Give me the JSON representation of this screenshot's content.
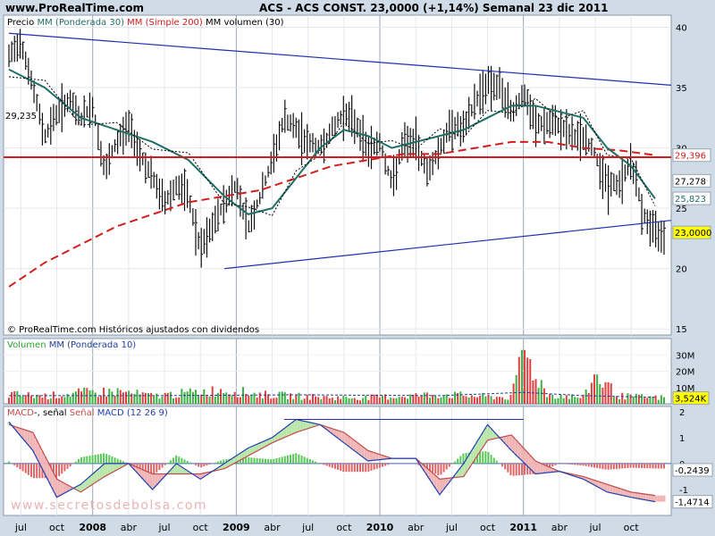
{
  "header": {
    "site": "www.ProRealTime.com",
    "title": "ACS - ACS CONST.    23,0000 (+1,14%)    Semanal  23 dic 2011"
  },
  "price_panel": {
    "legend": [
      {
        "text": "Precio",
        "color": "#000000"
      },
      {
        "text": "MM (Ponderada 30)",
        "color": "#1f6f66"
      },
      {
        "text": "MM (Simple 200)",
        "color": "#d21d1d"
      },
      {
        "text": "MM volumen (30)",
        "color": "#000000"
      }
    ],
    "hline_label": "29,235",
    "tags": [
      {
        "text": "29,396",
        "color": "#d21d1d",
        "bg": "#ffffff",
        "y": 29.4
      },
      {
        "text": "27,278",
        "color": "#000000",
        "bg": "#ffffff",
        "y": 27.28
      },
      {
        "text": "25,823",
        "color": "#1f6f66",
        "bg": "#ffffff",
        "y": 25.82
      },
      {
        "text": "23,0000",
        "color": "#000000",
        "bg": "#ffff00",
        "y": 23.0
      }
    ],
    "footer": "© ProRealTime.com  Históricos ajustados con dividendos"
  },
  "volume_panel": {
    "legend": [
      {
        "text": "Volumen",
        "color": "#2aa52a"
      },
      {
        "text": "MM (Ponderada 10)",
        "color": "#1f3f9a"
      }
    ],
    "tag": "3,524K"
  },
  "macd_panel": {
    "legend": [
      {
        "text": "MACD",
        "color": "#c44b4b"
      },
      {
        "text": "-, señal",
        "color": "#000000"
      },
      {
        "text": "Señal",
        "color": "#c44b4b"
      },
      {
        "text": "MACD (12 26 9)",
        "color": "#1f3fb0"
      }
    ],
    "tags": [
      {
        "text": "-0,2439",
        "y": -0.2439
      },
      {
        "text": "-1,4714",
        "y": -1.4714
      }
    ]
  },
  "watermark": "www.secretosdebolsa.com",
  "x_axis_labels": [
    {
      "text": "jul",
      "bold": false
    },
    {
      "text": "oct",
      "bold": false
    },
    {
      "text": "2008",
      "bold": true
    },
    {
      "text": "abr",
      "bold": false
    },
    {
      "text": "jul",
      "bold": false
    },
    {
      "text": "oct",
      "bold": false
    },
    {
      "text": "2009",
      "bold": true
    },
    {
      "text": "abr",
      "bold": false
    },
    {
      "text": "jul",
      "bold": false
    },
    {
      "text": "oct",
      "bold": false
    },
    {
      "text": "2010",
      "bold": true
    },
    {
      "text": "abr",
      "bold": false
    },
    {
      "text": "jul",
      "bold": false
    },
    {
      "text": "oct",
      "bold": false
    },
    {
      "text": "2011",
      "bold": true
    },
    {
      "text": "abr",
      "bold": false
    },
    {
      "text": "jul",
      "bold": false
    },
    {
      "text": "oct",
      "bold": false
    }
  ],
  "chart_data": [
    {
      "type": "line",
      "panel": "price",
      "title": "ACS - ACS CONST. Semanal",
      "x_range": [
        "2007-06-01",
        "2011-12-23"
      ],
      "ylim": [
        14.5,
        41
      ],
      "y_ticks": [
        "15",
        "20",
        "25",
        "30",
        "35",
        "40"
      ],
      "grid": true,
      "series": [
        {
          "name": "Precio",
          "style": "weekly range bars",
          "x": [
            "2007-06",
            "2007-07",
            "2007-08",
            "2007-09",
            "2007-10",
            "2007-11",
            "2007-12",
            "2008-01",
            "2008-02",
            "2008-03",
            "2008-04",
            "2008-05",
            "2008-06",
            "2008-07",
            "2008-08",
            "2008-09",
            "2008-10",
            "2008-11",
            "2008-12",
            "2009-01",
            "2009-02",
            "2009-03",
            "2009-04",
            "2009-05",
            "2009-06",
            "2009-07",
            "2009-08",
            "2009-09",
            "2009-10",
            "2009-11",
            "2009-12",
            "2010-01",
            "2010-02",
            "2010-03",
            "2010-04",
            "2010-05",
            "2010-06",
            "2010-07",
            "2010-08",
            "2010-09",
            "2010-10",
            "2010-11",
            "2010-12",
            "2011-01",
            "2011-02",
            "2011-03",
            "2011-04",
            "2011-05",
            "2011-06",
            "2011-07",
            "2011-08",
            "2011-09",
            "2011-10",
            "2011-11",
            "2011-12"
          ],
          "values": [
            37.5,
            39,
            35,
            31,
            33,
            34,
            32.5,
            33.5,
            28,
            30.5,
            32,
            29.5,
            27.5,
            25.5,
            27,
            26,
            21.5,
            23.5,
            25.5,
            27,
            23.5,
            26,
            29,
            32.5,
            31.5,
            30.5,
            30,
            31.5,
            33,
            32,
            30,
            30.5,
            27,
            30.5,
            30.5,
            28,
            30,
            32,
            31.5,
            34,
            35.5,
            35,
            33,
            34.5,
            32,
            32,
            32,
            31,
            31,
            29.5,
            27,
            27,
            29,
            24.5,
            23
          ]
        },
        {
          "name": "MM (Ponderada 30)",
          "x": [
            "2007-06",
            "2007-09",
            "2007-12",
            "2008-03",
            "2008-06",
            "2008-09",
            "2008-12",
            "2009-02",
            "2009-04",
            "2009-06",
            "2009-08",
            "2009-10",
            "2009-12",
            "2010-02",
            "2010-04",
            "2010-06",
            "2010-08",
            "2010-10",
            "2010-12",
            "2011-02",
            "2011-04",
            "2011-06",
            "2011-08",
            "2011-10",
            "2011-12"
          ],
          "values": [
            36.5,
            35,
            32.5,
            31.5,
            30.5,
            29,
            26,
            24.5,
            25,
            27.5,
            30,
            31.5,
            31,
            30,
            30.5,
            31,
            31.5,
            32.5,
            33.5,
            33.5,
            33,
            32.5,
            30,
            28.5,
            25.8
          ]
        },
        {
          "name": "MM (Simple 200)",
          "x": [
            "2007-06",
            "2007-09",
            "2007-12",
            "2008-03",
            "2008-06",
            "2008-09",
            "2008-12",
            "2009-03",
            "2009-06",
            "2009-09",
            "2009-12",
            "2010-03",
            "2010-06",
            "2010-09",
            "2010-12",
            "2011-03",
            "2011-06",
            "2011-09",
            "2011-12"
          ],
          "values": [
            18.5,
            20.5,
            22,
            23.5,
            24.5,
            25.5,
            26,
            26.5,
            27.5,
            28.5,
            29,
            29.5,
            29.5,
            30,
            30.5,
            30.5,
            30,
            29.8,
            29.4
          ]
        }
      ],
      "lines": [
        {
          "name": "resistance",
          "from": [
            "2007-06",
            39.5
          ],
          "to": [
            "2011-12",
            35.2
          ]
        },
        {
          "name": "support",
          "from": [
            "2008-12",
            20
          ],
          "to": [
            "2011-12",
            24
          ]
        },
        {
          "name": "horizontal",
          "y": 29.235
        }
      ]
    },
    {
      "type": "bar",
      "panel": "volume",
      "ylim": [
        0,
        40
      ],
      "y_ticks": [
        "10M",
        "20M",
        "30M"
      ],
      "series": [
        {
          "name": "Volumen",
          "unit": "M",
          "x": [
            "2007-06",
            "2007-09",
            "2007-12",
            "2008-03",
            "2008-06",
            "2008-09",
            "2008-12",
            "2009-03",
            "2009-06",
            "2009-09",
            "2009-12",
            "2010-03",
            "2010-06",
            "2010-09",
            "2010-12",
            "2011-01",
            "2011-03",
            "2011-06",
            "2011-07",
            "2011-09",
            "2011-12"
          ],
          "values": [
            6,
            5,
            7,
            8,
            5,
            7,
            9,
            6,
            5,
            4,
            4,
            5,
            6,
            5,
            4,
            33,
            6,
            4,
            18,
            5,
            4
          ]
        },
        {
          "name": "MM (Ponderada 10)",
          "unit": "M",
          "x": [
            "2007-06",
            "2008-06",
            "2009-06",
            "2010-06",
            "2011-01",
            "2011-06",
            "2011-12"
          ],
          "values": [
            5,
            5,
            5.5,
            5,
            7,
            5,
            4
          ]
        }
      ]
    },
    {
      "type": "area",
      "panel": "macd",
      "ylim": [
        -2,
        2.2
      ],
      "y_ticks": [
        "-1",
        "0",
        "1",
        "2"
      ],
      "series": [
        {
          "name": "MACD (12 26 9)",
          "x": [
            "2007-06",
            "2007-08",
            "2007-10",
            "2007-12",
            "2008-02",
            "2008-04",
            "2008-06",
            "2008-08",
            "2008-10",
            "2008-12",
            "2009-02",
            "2009-04",
            "2009-06",
            "2009-08",
            "2009-10",
            "2009-12",
            "2010-02",
            "2010-04",
            "2010-06",
            "2010-08",
            "2010-10",
            "2010-12",
            "2011-02",
            "2011-04",
            "2011-06",
            "2011-08",
            "2011-10",
            "2011-12"
          ],
          "values": [
            1.6,
            0.5,
            -1.3,
            -0.8,
            0,
            0,
            -1,
            0,
            -0.6,
            0,
            0.6,
            1,
            1.7,
            1.5,
            0.8,
            0.1,
            0.2,
            0.2,
            -1.2,
            0,
            1.5,
            0.5,
            -0.4,
            -0.3,
            -0.6,
            -1.1,
            -1.3,
            -1.47
          ]
        },
        {
          "name": "Señal",
          "x": [
            "2007-06",
            "2007-08",
            "2007-10",
            "2007-12",
            "2008-02",
            "2008-04",
            "2008-06",
            "2008-08",
            "2008-10",
            "2008-12",
            "2009-02",
            "2009-04",
            "2009-06",
            "2009-08",
            "2009-10",
            "2009-12",
            "2010-02",
            "2010-04",
            "2010-06",
            "2010-08",
            "2010-10",
            "2010-12",
            "2011-02",
            "2011-04",
            "2011-06",
            "2011-08",
            "2011-10",
            "2011-12"
          ],
          "values": [
            1.5,
            1.2,
            -0.6,
            -1.1,
            -0.5,
            0,
            -0.4,
            -0.4,
            -0.4,
            -0.2,
            0.3,
            0.8,
            1.2,
            1.5,
            1.2,
            0.5,
            0.2,
            0.2,
            -0.6,
            -0.5,
            0.9,
            1.1,
            0.1,
            -0.3,
            -0.5,
            -0.8,
            -1.1,
            -1.23
          ]
        }
      ],
      "lines": [
        {
          "name": "macd-trend",
          "from": [
            "2009-05",
            1.7
          ],
          "to": [
            "2011-01",
            1.7
          ]
        }
      ]
    }
  ]
}
